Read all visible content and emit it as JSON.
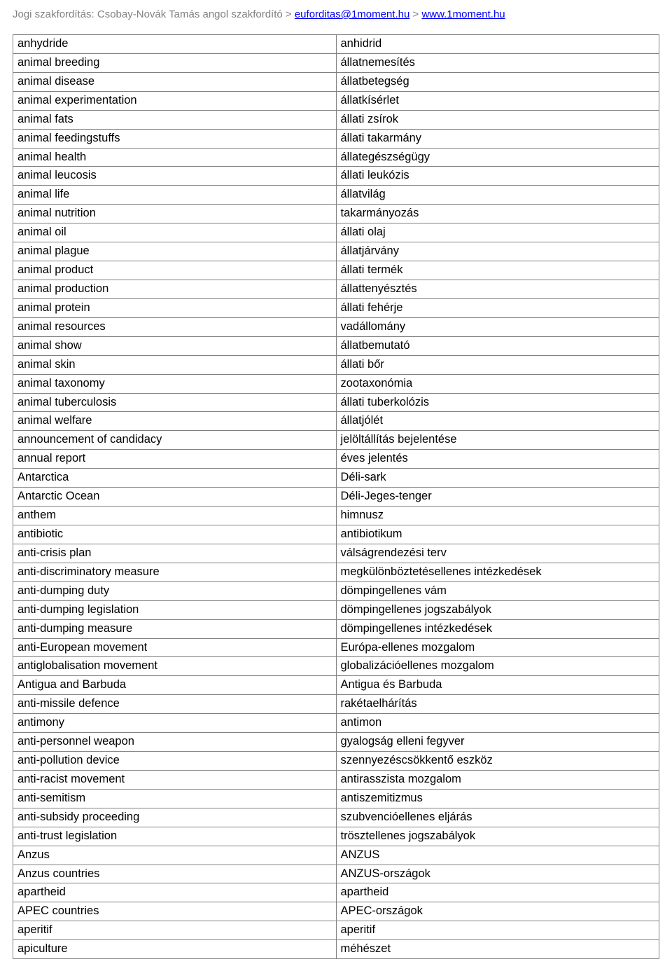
{
  "header": {
    "prefix": "Jogi szakfordítás: Csobay-Novák Tamás angol szakfordító > ",
    "email": "euforditas@1moment.hu",
    "sep": " > ",
    "url": "www.1moment.hu"
  },
  "rows": [
    {
      "en": "anhydride",
      "hu": "anhidrid"
    },
    {
      "en": "animal breeding",
      "hu": "állatnemesítés"
    },
    {
      "en": "animal disease",
      "hu": "állatbetegség"
    },
    {
      "en": "animal experimentation",
      "hu": "állatkísérlet"
    },
    {
      "en": "animal fats",
      "hu": "állati zsírok"
    },
    {
      "en": "animal feedingstuffs",
      "hu": "állati takarmány"
    },
    {
      "en": "animal health",
      "hu": "állategészségügy"
    },
    {
      "en": "animal leucosis",
      "hu": "állati leukózis"
    },
    {
      "en": "animal life",
      "hu": "állatvilág"
    },
    {
      "en": "animal nutrition",
      "hu": "takarmányozás"
    },
    {
      "en": "animal oil",
      "hu": "állati olaj"
    },
    {
      "en": "animal plague",
      "hu": "állatjárvány"
    },
    {
      "en": "animal product",
      "hu": "állati termék"
    },
    {
      "en": "animal production",
      "hu": "állattenyésztés"
    },
    {
      "en": "animal protein",
      "hu": "állati fehérje"
    },
    {
      "en": "animal resources",
      "hu": "vadállomány"
    },
    {
      "en": "animal show",
      "hu": "állatbemutató"
    },
    {
      "en": "animal skin",
      "hu": "állati bőr"
    },
    {
      "en": "animal taxonomy",
      "hu": "zootaxonómia"
    },
    {
      "en": "animal tuberculosis",
      "hu": "állati tuberkolózis"
    },
    {
      "en": "animal welfare",
      "hu": "állatjólét"
    },
    {
      "en": "announcement of candidacy",
      "hu": "jelöltállítás bejelentése"
    },
    {
      "en": "annual report",
      "hu": "éves jelentés"
    },
    {
      "en": "Antarctica",
      "hu": "Déli-sark"
    },
    {
      "en": "Antarctic Ocean",
      "hu": "Déli-Jeges-tenger"
    },
    {
      "en": "anthem",
      "hu": "himnusz"
    },
    {
      "en": "antibiotic",
      "hu": "antibiotikum"
    },
    {
      "en": "anti-crisis plan",
      "hu": "válságrendezési terv"
    },
    {
      "en": "anti-discriminatory measure",
      "hu": "megkülönböztetésellenes intézkedések"
    },
    {
      "en": "anti-dumping duty",
      "hu": "dömpingellenes vám"
    },
    {
      "en": "anti-dumping legislation",
      "hu": "dömpingellenes jogszabályok"
    },
    {
      "en": "anti-dumping measure",
      "hu": "dömpingellenes intézkedések"
    },
    {
      "en": "anti-European movement",
      "hu": "Európa-ellenes mozgalom"
    },
    {
      "en": "antiglobalisation movement",
      "hu": "globalizációellenes mozgalom"
    },
    {
      "en": "Antigua and Barbuda",
      "hu": "Antigua és Barbuda"
    },
    {
      "en": "anti-missile defence",
      "hu": "rakétaelhárítás"
    },
    {
      "en": "antimony",
      "hu": "antimon"
    },
    {
      "en": "anti-personnel weapon",
      "hu": "gyalogság elleni fegyver"
    },
    {
      "en": "anti-pollution device",
      "hu": "szennyezéscsökkentő eszköz"
    },
    {
      "en": "anti-racist movement",
      "hu": "antirasszista mozgalom"
    },
    {
      "en": "anti-semitism",
      "hu": "antiszemitizmus"
    },
    {
      "en": "anti-subsidy proceeding",
      "hu": "szubvencióellenes eljárás"
    },
    {
      "en": "anti-trust legislation",
      "hu": "trösztellenes jogszabályok"
    },
    {
      "en": "Anzus",
      "hu": "ANZUS"
    },
    {
      "en": "Anzus countries",
      "hu": "ANZUS-országok"
    },
    {
      "en": "apartheid",
      "hu": "apartheid"
    },
    {
      "en": "APEC countries",
      "hu": "APEC-országok"
    },
    {
      "en": "aperitif",
      "hu": "aperitif"
    },
    {
      "en": "apiculture",
      "hu": "méhészet"
    }
  ]
}
